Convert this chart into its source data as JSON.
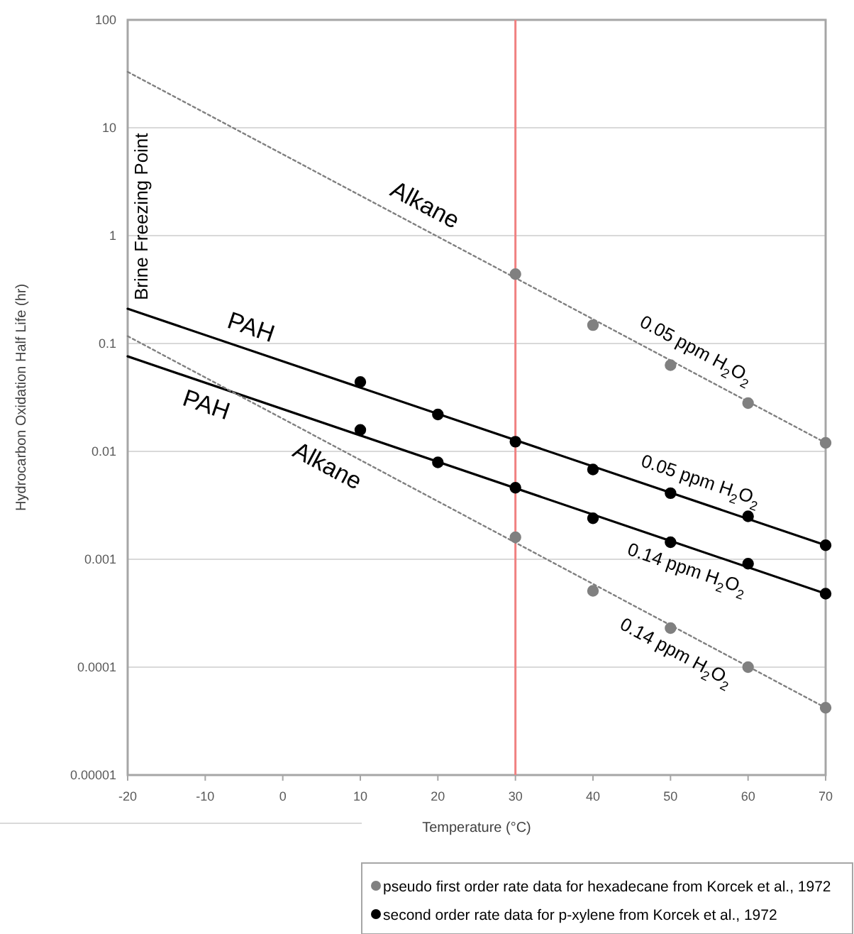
{
  "chart_data": {
    "type": "line",
    "xlabel": "Temperature (°C)",
    "ylabel": "Hydrocarbon Oxidation Half Life (hr)",
    "xlim": [
      -20,
      70
    ],
    "xticks": [
      -20,
      -10,
      0,
      10,
      20,
      30,
      40,
      50,
      60,
      70
    ],
    "ylim": [
      1e-05,
      100
    ],
    "yticks": [
      100,
      10,
      1,
      0.1,
      0.01,
      0.001,
      0.0001,
      {
        "value": 1e-05,
        "label": "0.00001"
      }
    ],
    "log": "y",
    "grid": "y",
    "legend": "bottom",
    "series": [
      {
        "color": "#808080",
        "line_style": "dotted",
        "marker": "none",
        "x": [
          -20,
          70
        ],
        "values": [
          33,
          0.012
        ]
      },
      {
        "color": "#000000",
        "line_style": "solid",
        "marker": "none",
        "x": [
          -20,
          70
        ],
        "values": [
          0.21,
          0.00135
        ]
      },
      {
        "color": "#000000",
        "line_style": "solid",
        "marker": "none",
        "x": [
          -20,
          70
        ],
        "values": [
          0.076,
          0.00048
        ]
      },
      {
        "color": "#808080",
        "line_style": "dotted",
        "marker": "none",
        "x": [
          -20,
          70
        ],
        "values": [
          0.117,
          4.2e-05
        ]
      },
      {
        "type": "scatter",
        "name": "pseudo first order rate data for hexadecane from Korcek et al., 1972",
        "color": "#808080",
        "marker": "circle",
        "x": [
          30,
          40,
          50,
          60,
          70,
          30,
          40,
          50,
          60,
          70
        ],
        "values": [
          0.44,
          0.148,
          0.063,
          0.028,
          0.012,
          0.0016,
          0.00051,
          0.00023,
          0.0001,
          4.2e-05
        ]
      },
      {
        "type": "scatter",
        "name": "second order rate data for p-xylene from Korcek et al., 1972",
        "color": "#000000",
        "marker": "circle",
        "x": [
          10,
          20,
          30,
          40,
          50,
          60,
          70,
          10,
          20,
          30,
          40,
          50,
          60,
          70
        ],
        "values": [
          0.044,
          0.022,
          0.0123,
          0.0068,
          0.0041,
          0.0025,
          0.00135,
          0.0158,
          0.0079,
          0.0046,
          0.0024,
          0.00144,
          0.00091,
          0.00048
        ]
      }
    ],
    "ref_lines": [
      {
        "axis": "x",
        "value": 30,
        "color": "#f08080"
      }
    ],
    "annotations": [
      "Brine Freezing Point",
      {
        "text": "Alkane",
        "x": 17,
        "y": 1.27
      },
      {
        "text": "0.05 ppm H$_{2}$O$_{2}$",
        "x": 52,
        "y": 0.0585
      },
      {
        "text": "PAH",
        "x": -5,
        "y": 0.0906
      },
      {
        "text": "PAH",
        "x": -9,
        "y": 0.0409
      },
      {
        "text": "Alkane",
        "x": 7,
        "y": 0.0108
      },
      {
        "text": "0.05 ppm H$_{2}$O$_{2}$",
        "x": 53,
        "y": 0.0035
      },
      {
        "text": "0.14 ppm H$_{2}$O$_{2}$",
        "x": 53,
        "y": 0.00125
      },
      {
        "text": "0.14 ppm H$_{2}$O$_{2}$",
        "x": 52,
        "y": 0.000205
      }
    ]
  }
}
